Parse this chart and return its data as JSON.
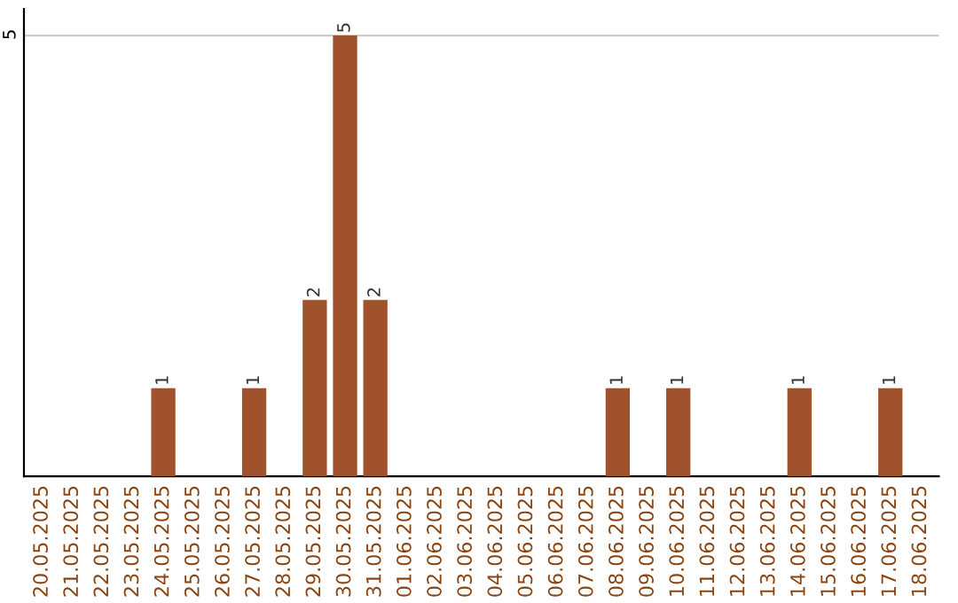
{
  "chart_data": {
    "type": "bar",
    "categories": [
      "20.05.2025",
      "21.05.2025",
      "22.05.2025",
      "23.05.2025",
      "24.05.2025",
      "25.05.2025",
      "26.05.2025",
      "27.05.2025",
      "28.05.2025",
      "29.05.2025",
      "30.05.2025",
      "31.05.2025",
      "01.06.2025",
      "02.06.2025",
      "03.06.2025",
      "04.06.2025",
      "05.06.2025",
      "06.06.2025",
      "07.06.2025",
      "08.06.2025",
      "09.06.2025",
      "10.06.2025",
      "11.06.2025",
      "12.06.2025",
      "13.06.2025",
      "14.06.2025",
      "15.06.2025",
      "16.06.2025",
      "17.06.2025",
      "18.06.2025"
    ],
    "values": [
      0,
      0,
      0,
      0,
      1,
      0,
      0,
      1,
      0,
      2,
      5,
      2,
      0,
      0,
      0,
      0,
      0,
      0,
      0,
      1,
      0,
      1,
      0,
      0,
      0,
      1,
      0,
      0,
      1,
      0
    ],
    "value_labels": [
      null,
      null,
      null,
      null,
      "1",
      null,
      null,
      "1",
      null,
      "2",
      "5",
      "2",
      null,
      null,
      null,
      null,
      null,
      null,
      null,
      "1",
      null,
      "1",
      null,
      null,
      null,
      "1",
      null,
      null,
      "1",
      null
    ],
    "color": "#a0522d",
    "ylim": [
      0,
      5.3
    ],
    "yticks": [
      5
    ],
    "grid": "y"
  }
}
